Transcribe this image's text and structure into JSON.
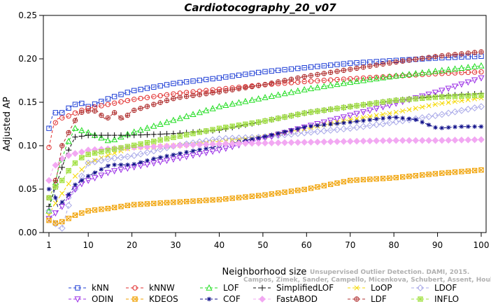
{
  "chart_data": {
    "type": "line",
    "title": "Cardiotocography_20_v07",
    "xlabel": "Neighborhood size",
    "ylabel": "Adjusted AP",
    "xlim": [
      1,
      100
    ],
    "ylim": [
      0,
      0.25
    ],
    "xticks": [
      1,
      10,
      20,
      30,
      40,
      50,
      60,
      70,
      80,
      90,
      100
    ],
    "yticks": [
      "0.00",
      "0.05",
      "0.10",
      "0.15",
      "0.20",
      "0.25"
    ],
    "grid": false,
    "legend_position": "bottom",
    "watermark": [
      "Unsupervised Outlier Detection. DAMI, 2015.",
      "Campos, Zimek, Sander, Campello, Micenkova, Schubert, Assent, Houle"
    ],
    "series": [
      {
        "name": "kNN",
        "color": "#1f3fd6",
        "marker": "square",
        "points": [
          [
            1,
            0.12
          ],
          [
            2,
            0.138
          ],
          [
            4,
            0.138
          ],
          [
            6,
            0.145
          ],
          [
            8,
            0.15
          ],
          [
            10,
            0.145
          ],
          [
            15,
            0.155
          ],
          [
            20,
            0.163
          ],
          [
            30,
            0.172
          ],
          [
            40,
            0.178
          ],
          [
            50,
            0.185
          ],
          [
            60,
            0.19
          ],
          [
            70,
            0.195
          ],
          [
            80,
            0.198
          ],
          [
            90,
            0.201
          ],
          [
            100,
            0.203
          ]
        ]
      },
      {
        "name": "kNNW",
        "color": "#e23030",
        "marker": "circle",
        "points": [
          [
            1,
            0.098
          ],
          [
            2,
            0.122
          ],
          [
            3,
            0.131
          ],
          [
            5,
            0.133
          ],
          [
            8,
            0.14
          ],
          [
            10,
            0.143
          ],
          [
            15,
            0.148
          ],
          [
            20,
            0.153
          ],
          [
            30,
            0.16
          ],
          [
            40,
            0.165
          ],
          [
            50,
            0.17
          ],
          [
            60,
            0.174
          ],
          [
            70,
            0.177
          ],
          [
            80,
            0.18
          ],
          [
            90,
            0.183
          ],
          [
            100,
            0.185
          ]
        ]
      },
      {
        "name": "LOF",
        "color": "#22dd22",
        "marker": "triangle-up",
        "points": [
          [
            1,
            0.025
          ],
          [
            2,
            0.045
          ],
          [
            3,
            0.07
          ],
          [
            5,
            0.1
          ],
          [
            7,
            0.12
          ],
          [
            10,
            0.115
          ],
          [
            15,
            0.105
          ],
          [
            20,
            0.115
          ],
          [
            30,
            0.13
          ],
          [
            40,
            0.145
          ],
          [
            50,
            0.155
          ],
          [
            60,
            0.165
          ],
          [
            70,
            0.173
          ],
          [
            80,
            0.18
          ],
          [
            90,
            0.186
          ],
          [
            100,
            0.192
          ]
        ]
      },
      {
        "name": "SimplifiedLOF",
        "color": "#111111",
        "marker": "plus",
        "points": [
          [
            1,
            0.03
          ],
          [
            2,
            0.045
          ],
          [
            3,
            0.06
          ],
          [
            5,
            0.09
          ],
          [
            7,
            0.11
          ],
          [
            10,
            0.112
          ],
          [
            15,
            0.112
          ],
          [
            20,
            0.112
          ],
          [
            30,
            0.114
          ],
          [
            40,
            0.118
          ],
          [
            50,
            0.128
          ],
          [
            60,
            0.138
          ],
          [
            70,
            0.145
          ],
          [
            80,
            0.152
          ],
          [
            90,
            0.157
          ],
          [
            100,
            0.16
          ]
        ]
      },
      {
        "name": "LoOP",
        "color": "#f5d800",
        "marker": "x",
        "points": [
          [
            1,
            0.02
          ],
          [
            2,
            0.03
          ],
          [
            4,
            0.045
          ],
          [
            6,
            0.06
          ],
          [
            8,
            0.07
          ],
          [
            10,
            0.08
          ],
          [
            15,
            0.09
          ],
          [
            20,
            0.098
          ],
          [
            30,
            0.1
          ],
          [
            40,
            0.105
          ],
          [
            50,
            0.11
          ],
          [
            60,
            0.12
          ],
          [
            70,
            0.13
          ],
          [
            80,
            0.138
          ],
          [
            90,
            0.148
          ],
          [
            100,
            0.155
          ]
        ]
      },
      {
        "name": "LDOF",
        "color": "#a8a8e8",
        "marker": "diamond",
        "points": [
          [
            1,
            0.025
          ],
          [
            2,
            0.015
          ],
          [
            3,
            0.005
          ],
          [
            4,
            0.005
          ],
          [
            6,
            0.04
          ],
          [
            8,
            0.06
          ],
          [
            10,
            0.08
          ],
          [
            15,
            0.085
          ],
          [
            20,
            0.088
          ],
          [
            30,
            0.1
          ],
          [
            40,
            0.108
          ],
          [
            50,
            0.11
          ],
          [
            60,
            0.115
          ],
          [
            70,
            0.12
          ],
          [
            80,
            0.127
          ],
          [
            90,
            0.135
          ],
          [
            100,
            0.145
          ]
        ]
      },
      {
        "name": "ODIN",
        "color": "#9b2fe6",
        "marker": "triangle-down",
        "points": [
          [
            1,
            0.016
          ],
          [
            2,
            0.02
          ],
          [
            4,
            0.03
          ],
          [
            6,
            0.045
          ],
          [
            8,
            0.055
          ],
          [
            10,
            0.06
          ],
          [
            15,
            0.07
          ],
          [
            20,
            0.075
          ],
          [
            30,
            0.085
          ],
          [
            40,
            0.095
          ],
          [
            50,
            0.108
          ],
          [
            60,
            0.122
          ],
          [
            70,
            0.135
          ],
          [
            80,
            0.148
          ],
          [
            90,
            0.162
          ],
          [
            100,
            0.178
          ]
        ]
      },
      {
        "name": "KDEOS",
        "color": "#f0a000",
        "marker": "square-x",
        "points": [
          [
            1,
            0.014
          ],
          [
            3,
            0.01
          ],
          [
            5,
            0.015
          ],
          [
            7,
            0.02
          ],
          [
            10,
            0.025
          ],
          [
            15,
            0.028
          ],
          [
            20,
            0.032
          ],
          [
            30,
            0.035
          ],
          [
            40,
            0.038
          ],
          [
            50,
            0.043
          ],
          [
            60,
            0.05
          ],
          [
            70,
            0.06
          ],
          [
            80,
            0.063
          ],
          [
            90,
            0.068
          ],
          [
            100,
            0.072
          ]
        ]
      },
      {
        "name": "COF",
        "color": "#10108a",
        "marker": "asterisk",
        "points": [
          [
            1,
            0.05
          ],
          [
            2,
            0.05
          ],
          [
            3,
            0.03
          ],
          [
            5,
            0.04
          ],
          [
            7,
            0.055
          ],
          [
            10,
            0.065
          ],
          [
            15,
            0.078
          ],
          [
            20,
            0.078
          ],
          [
            25,
            0.085
          ],
          [
            30,
            0.09
          ],
          [
            40,
            0.1
          ],
          [
            50,
            0.11
          ],
          [
            60,
            0.122
          ],
          [
            70,
            0.127
          ],
          [
            80,
            0.133
          ],
          [
            85,
            0.13
          ],
          [
            90,
            0.12
          ],
          [
            95,
            0.122
          ],
          [
            100,
            0.122
          ]
        ]
      },
      {
        "name": "FastABOD",
        "color": "#f2a8f2",
        "marker": "diamond-filled",
        "points": [
          [
            1,
            0.06
          ],
          [
            2,
            0.075
          ],
          [
            4,
            0.085
          ],
          [
            6,
            0.09
          ],
          [
            8,
            0.092
          ],
          [
            10,
            0.095
          ],
          [
            20,
            0.098
          ],
          [
            30,
            0.1
          ],
          [
            40,
            0.102
          ],
          [
            50,
            0.103
          ],
          [
            60,
            0.104
          ],
          [
            70,
            0.105
          ],
          [
            80,
            0.106
          ],
          [
            90,
            0.106
          ],
          [
            100,
            0.107
          ]
        ]
      },
      {
        "name": "LDF",
        "color": "#b03030",
        "marker": "circle-plus",
        "points": [
          [
            1,
            0.04
          ],
          [
            2,
            0.05
          ],
          [
            3,
            0.07
          ],
          [
            4,
            0.1
          ],
          [
            6,
            0.12
          ],
          [
            8,
            0.138
          ],
          [
            10,
            0.14
          ],
          [
            12,
            0.14
          ],
          [
            14,
            0.13
          ],
          [
            16,
            0.138
          ],
          [
            18,
            0.13
          ],
          [
            20,
            0.14
          ],
          [
            30,
            0.155
          ],
          [
            40,
            0.162
          ],
          [
            50,
            0.17
          ],
          [
            60,
            0.18
          ],
          [
            70,
            0.188
          ],
          [
            80,
            0.196
          ],
          [
            90,
            0.203
          ],
          [
            100,
            0.208
          ]
        ]
      },
      {
        "name": "INFLO",
        "color": "#a0e040",
        "marker": "square-star",
        "points": [
          [
            1,
            0.04
          ],
          [
            2,
            0.05
          ],
          [
            4,
            0.06
          ],
          [
            6,
            0.075
          ],
          [
            8,
            0.085
          ],
          [
            10,
            0.09
          ],
          [
            15,
            0.095
          ],
          [
            20,
            0.1
          ],
          [
            30,
            0.11
          ],
          [
            40,
            0.12
          ],
          [
            50,
            0.128
          ],
          [
            60,
            0.138
          ],
          [
            70,
            0.145
          ],
          [
            80,
            0.152
          ],
          [
            90,
            0.156
          ],
          [
            100,
            0.158
          ]
        ]
      }
    ]
  }
}
